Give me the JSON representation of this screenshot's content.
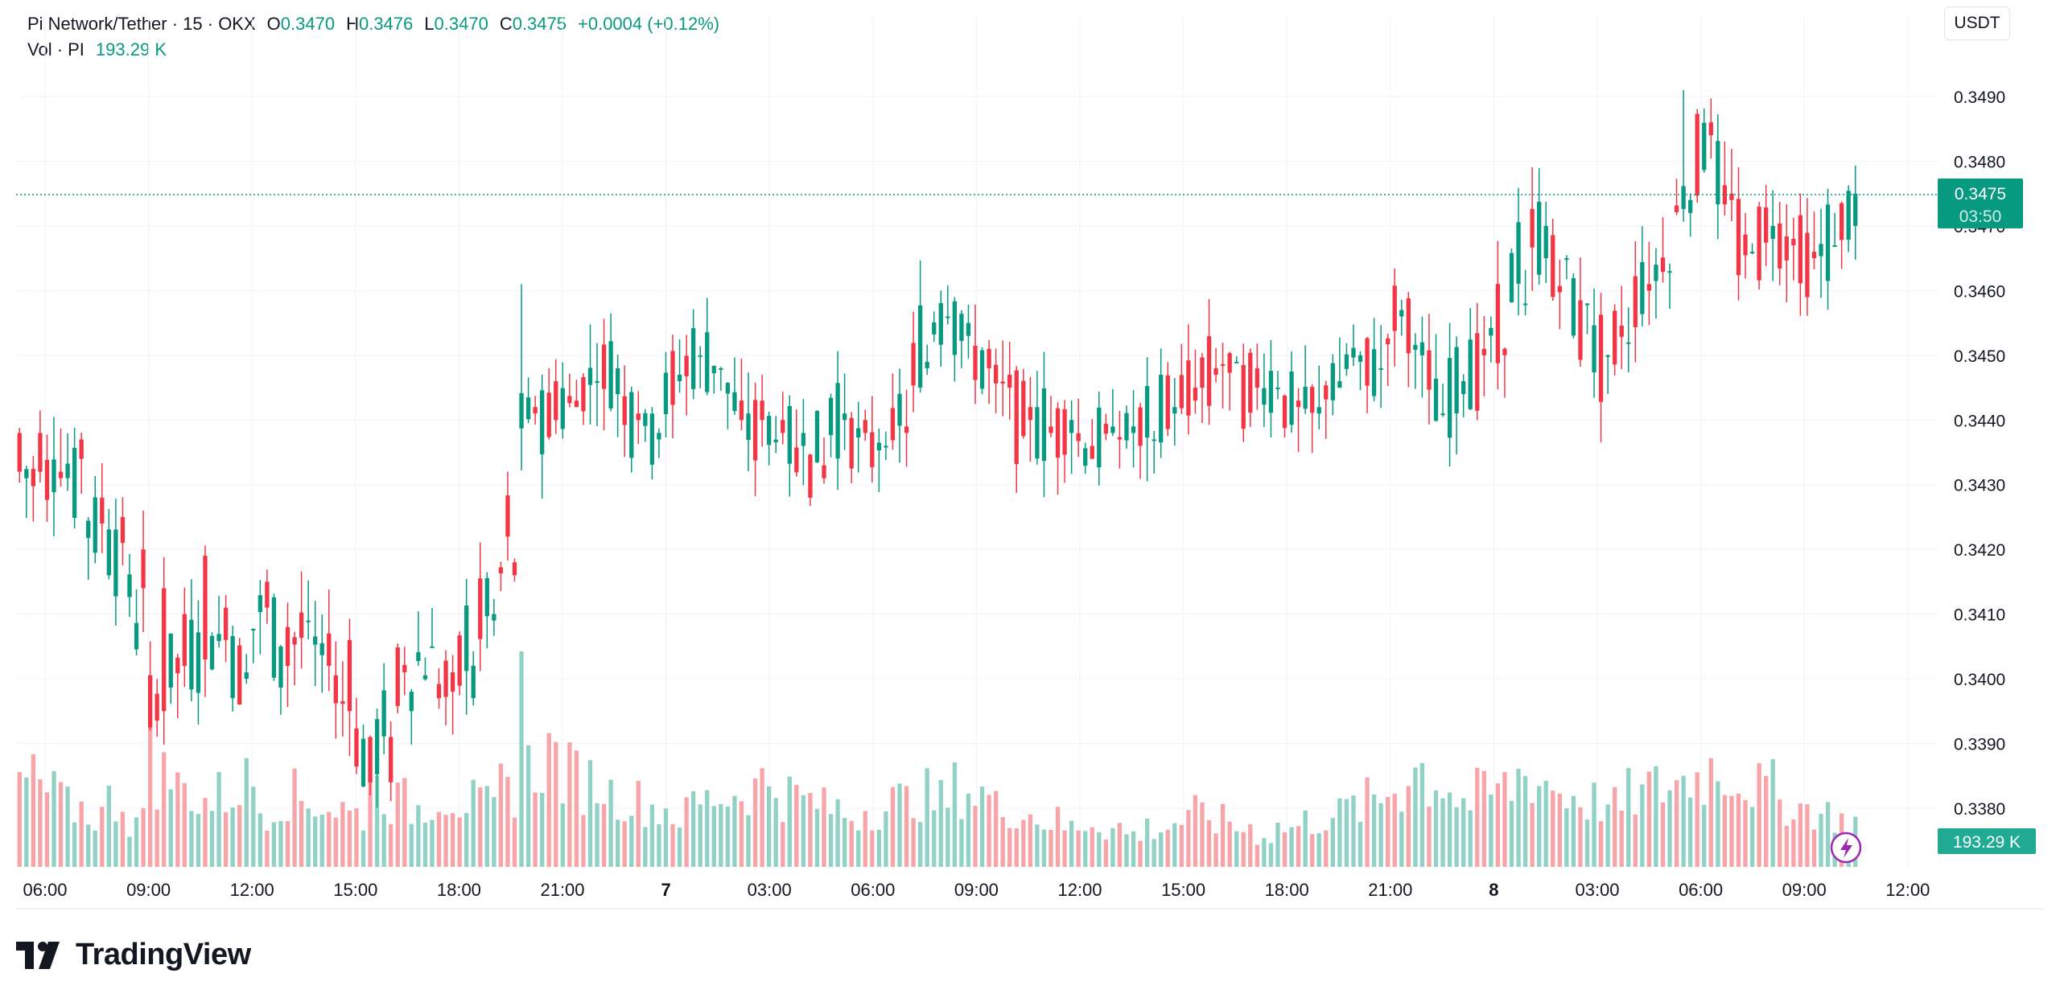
{
  "legend": {
    "symbol": "Pi Network/Tether · 15 · OKX",
    "o_label": "O",
    "o_value": "0.3470",
    "h_label": "H",
    "h_value": "0.3476",
    "l_label": "L",
    "l_value": "0.3470",
    "c_label": "C",
    "c_value": "0.3475",
    "change": "+0.0004 (+0.12%)",
    "vol_label": "Vol · PI",
    "vol_value": "193.29 K"
  },
  "currency_button": "USDT",
  "price_label": {
    "value": "0.3475",
    "countdown": "03:50"
  },
  "volume_label": "193.29 K",
  "logo_text": "TradingView",
  "colors": {
    "up": "#089981",
    "down": "#f23645",
    "up_vol": "#92d2c6",
    "down_vol": "#f7a5a9",
    "grid": "#f0f3fa",
    "text": "#131722",
    "lightning": "#9c27b0"
  },
  "chart_data": {
    "type": "candlestick",
    "interval": "15",
    "y_axis": {
      "min": 0.3372,
      "max": 0.3496,
      "ticks": [
        "0.3490",
        "0.3480",
        "0.3470",
        "0.3460",
        "0.3450",
        "0.3440",
        "0.3430",
        "0.3420",
        "0.3410",
        "0.3400",
        "0.3390",
        "0.3380"
      ]
    },
    "x_ticks": [
      {
        "label": "06:00",
        "bold": false
      },
      {
        "label": "09:00",
        "bold": false
      },
      {
        "label": "12:00",
        "bold": false
      },
      {
        "label": "15:00",
        "bold": false
      },
      {
        "label": "18:00",
        "bold": false
      },
      {
        "label": "21:00",
        "bold": false
      },
      {
        "label": "7",
        "bold": true
      },
      {
        "label": "03:00",
        "bold": false
      },
      {
        "label": "06:00",
        "bold": false
      },
      {
        "label": "09:00",
        "bold": false
      },
      {
        "label": "12:00",
        "bold": false
      },
      {
        "label": "15:00",
        "bold": false
      },
      {
        "label": "18:00",
        "bold": false
      },
      {
        "label": "21:00",
        "bold": false
      },
      {
        "label": "8",
        "bold": true
      },
      {
        "label": "03:00",
        "bold": false
      },
      {
        "label": "06:00",
        "bold": false
      },
      {
        "label": "09:00",
        "bold": false
      },
      {
        "label": "12:00",
        "bold": false
      }
    ],
    "anchors": [
      [
        0.3438,
        0.3432,
        0.3439,
        0.3426
      ],
      [
        0.3432,
        0.3431,
        0.3438,
        0.3426
      ],
      [
        0.3437,
        0.3434,
        0.344,
        0.343
      ],
      [
        0.3428,
        0.3424,
        0.3432,
        0.3418
      ],
      [
        0.3425,
        0.3421,
        0.343,
        0.3416
      ],
      [
        0.342,
        0.3414,
        0.3425,
        0.3407
      ],
      [
        0.3414,
        0.3395,
        0.3422,
        0.3392
      ],
      [
        0.341,
        0.3402,
        0.342,
        0.3402
      ],
      [
        0.3419,
        0.3403,
        0.3425,
        0.3396
      ],
      [
        0.3411,
        0.3406,
        0.3418,
        0.3397
      ],
      [
        0.34,
        0.3401,
        0.3406,
        0.3395
      ],
      [
        0.3415,
        0.3411,
        0.3422,
        0.3402
      ],
      [
        0.3408,
        0.3402,
        0.342,
        0.34
      ],
      [
        0.3409,
        0.3409,
        0.3418,
        0.3401
      ],
      [
        0.3407,
        0.3402,
        0.3414,
        0.3398
      ],
      [
        0.3406,
        0.3395,
        0.3413,
        0.339
      ],
      [
        0.3391,
        0.3384,
        0.3399,
        0.3381
      ],
      [
        0.3395,
        0.3398,
        0.3402,
        0.3388
      ],
      [
        0.3405,
        0.3405,
        0.3411,
        0.3397
      ],
      [
        0.3401,
        0.3398,
        0.3408,
        0.3393
      ],
      [
        0.3397,
        0.3402,
        0.3406,
        0.3388
      ],
      [
        0.3409,
        0.341,
        0.3414,
        0.3404
      ],
      [
        0.3418,
        0.3416,
        0.3422,
        0.341
      ],
      [
        0.3442,
        0.3441,
        0.3461,
        0.344
      ],
      [
        0.3446,
        0.344,
        0.3451,
        0.3435
      ],
      [
        0.3443,
        0.3442,
        0.3448,
        0.3436
      ],
      [
        0.3446,
        0.3446,
        0.3451,
        0.3441
      ],
      [
        0.3444,
        0.3448,
        0.3453,
        0.3441
      ],
      [
        0.3441,
        0.344,
        0.3446,
        0.3435
      ],
      [
        0.3437,
        0.3438,
        0.3445,
        0.3433
      ],
      [
        0.3446,
        0.3447,
        0.3452,
        0.3441
      ],
      [
        0.345,
        0.345,
        0.3456,
        0.3444
      ],
      [
        0.3448,
        0.3448,
        0.3455,
        0.3442
      ],
      [
        0.3443,
        0.344,
        0.345,
        0.3438
      ],
      [
        0.344,
        0.3438,
        0.3446,
        0.3433
      ],
      [
        0.3436,
        0.3438,
        0.3443,
        0.3429
      ],
      [
        0.3433,
        0.3431,
        0.3441,
        0.3427
      ],
      [
        0.344,
        0.3441,
        0.3445,
        0.3433
      ],
      [
        0.344,
        0.3438,
        0.3443,
        0.3434
      ],
      [
        0.3436,
        0.3436,
        0.3441,
        0.343
      ],
      [
        0.3439,
        0.3438,
        0.3445,
        0.343
      ],
      [
        0.3448,
        0.3449,
        0.3454,
        0.3443
      ],
      [
        0.3456,
        0.3456,
        0.346,
        0.3447
      ],
      [
        0.3453,
        0.3455,
        0.3459,
        0.3449
      ],
      [
        0.3451,
        0.3448,
        0.3456,
        0.3443
      ],
      [
        0.3447,
        0.3445,
        0.3452,
        0.3441
      ],
      [
        0.3442,
        0.344,
        0.3447,
        0.3437
      ],
      [
        0.3439,
        0.3438,
        0.3442,
        0.3434
      ],
      [
        0.3438,
        0.344,
        0.3442,
        0.3433
      ],
      [
        0.3436,
        0.3434,
        0.3441,
        0.3432
      ],
      [
        0.3438,
        0.3439,
        0.3441,
        0.3434
      ],
      [
        0.3437,
        0.3437,
        0.3443,
        0.3433
      ],
      [
        0.3441,
        0.3442,
        0.3446,
        0.3435
      ],
      [
        0.3445,
        0.3443,
        0.345,
        0.3439
      ],
      [
        0.3448,
        0.3447,
        0.3451,
        0.3442
      ],
      [
        0.3449,
        0.3449,
        0.3451,
        0.3444
      ],
      [
        0.3448,
        0.3445,
        0.345,
        0.3442
      ],
      [
        0.3445,
        0.3445,
        0.3448,
        0.3441
      ],
      [
        0.3443,
        0.3442,
        0.3446,
        0.3439
      ],
      [
        0.3441,
        0.3442,
        0.3446,
        0.3438
      ],
      [
        0.3445,
        0.3446,
        0.3449,
        0.3441
      ],
      [
        0.3449,
        0.345,
        0.3452,
        0.3444
      ],
      [
        0.3448,
        0.3448,
        0.3456,
        0.3445
      ],
      [
        0.3456,
        0.3457,
        0.3462,
        0.345
      ],
      [
        0.345,
        0.3452,
        0.3458,
        0.3446
      ],
      [
        0.3441,
        0.3441,
        0.3448,
        0.3436
      ],
      [
        0.3444,
        0.3446,
        0.3451,
        0.344
      ],
      [
        0.3451,
        0.345,
        0.3456,
        0.3445
      ],
      [
        0.3458,
        0.3458,
        0.3463,
        0.3452
      ],
      [
        0.3465,
        0.347,
        0.3475,
        0.3458
      ],
      [
        0.3465,
        0.3465,
        0.3472,
        0.3459
      ],
      [
        0.3458,
        0.3458,
        0.3464,
        0.3453
      ],
      [
        0.345,
        0.345,
        0.3457,
        0.3448
      ],
      [
        0.3452,
        0.3452,
        0.3458,
        0.3449
      ],
      [
        0.3461,
        0.346,
        0.3464,
        0.3457
      ],
      [
        0.3463,
        0.3463,
        0.3472,
        0.3459
      ],
      [
        0.3472,
        0.3474,
        0.3491,
        0.3467
      ],
      [
        0.3486,
        0.3484,
        0.3491,
        0.3478
      ],
      [
        0.3475,
        0.3474,
        0.348,
        0.3468
      ],
      [
        0.3466,
        0.3466,
        0.3474,
        0.3462
      ],
      [
        0.3468,
        0.347,
        0.3475,
        0.3465
      ],
      [
        0.3468,
        0.3467,
        0.3475,
        0.3463
      ],
      [
        0.3466,
        0.3465,
        0.3472,
        0.346
      ],
      [
        0.3467,
        0.3467,
        0.3472,
        0.3463
      ],
      [
        0.347,
        0.3475,
        0.3476,
        0.347
      ]
    ],
    "volume": [
      26,
      22,
      18,
      16,
      20,
      14,
      28,
      24,
      20,
      22,
      26,
      18,
      22,
      20,
      18,
      16,
      24,
      20,
      18,
      22,
      20,
      18,
      24,
      30,
      34,
      28,
      26,
      22,
      20,
      18,
      16,
      20,
      22,
      24,
      26,
      22,
      20,
      18,
      16,
      18,
      20,
      22,
      20,
      24,
      22,
      18,
      16,
      14,
      12,
      14,
      12,
      10,
      12,
      14,
      16,
      14,
      12,
      10,
      12,
      14,
      16,
      18,
      20,
      24,
      30,
      26,
      20,
      22,
      24,
      28,
      26,
      22,
      20,
      18,
      22,
      24,
      26,
      28,
      30,
      26,
      24,
      20,
      18,
      16,
      14
    ],
    "volume_max_label": "193.29 K"
  }
}
